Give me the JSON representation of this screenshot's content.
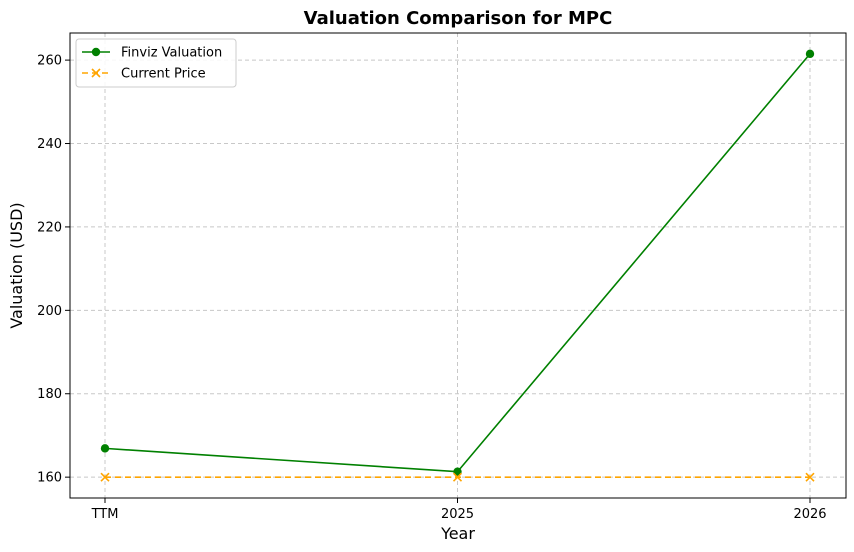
{
  "chart_data": {
    "type": "line",
    "title": "Valuation Comparison for MPC",
    "xlabel": "Year",
    "ylabel": "Valuation (USD)",
    "categories": [
      "TTM",
      "2025",
      "2026"
    ],
    "ylim": [
      155,
      266.5
    ],
    "yticks": [
      160,
      180,
      200,
      220,
      240,
      260
    ],
    "grid": true,
    "legend_position": "top-left",
    "series": [
      {
        "name": "Finviz Valuation",
        "values": [
          166.9,
          161.3,
          261.5
        ],
        "color": "#008000",
        "marker": "circle",
        "line_style": "solid"
      },
      {
        "name": "Current Price",
        "values": [
          160.0,
          160.0,
          160.0
        ],
        "color": "#ffa500",
        "marker": "x",
        "line_style": "dashed"
      }
    ]
  }
}
